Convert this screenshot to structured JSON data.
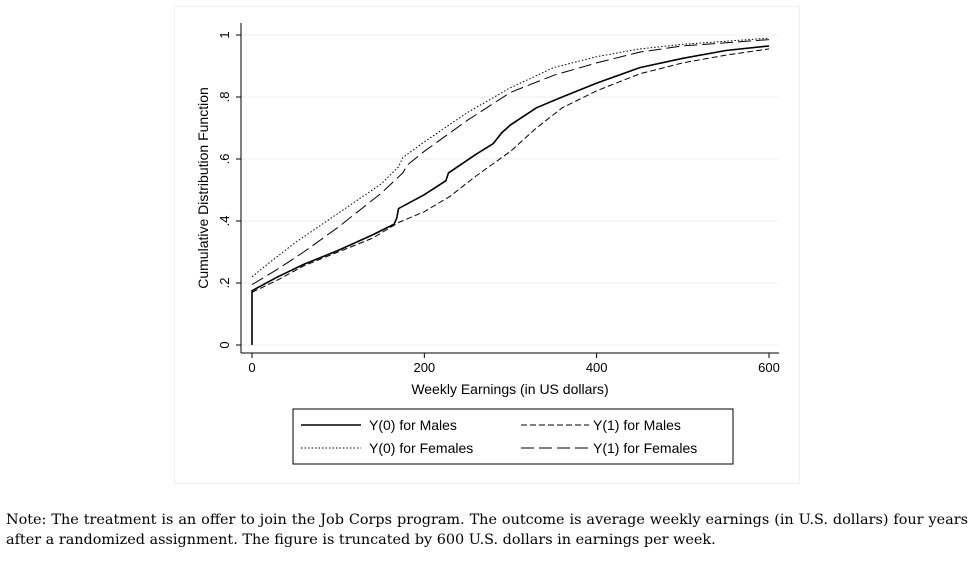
{
  "chart_data": {
    "type": "line",
    "title": "",
    "xlabel": "Weekly Earnings (in US dollars)",
    "ylabel": "Cumulative Distribution Function",
    "xlim": [
      0,
      600
    ],
    "ylim": [
      0,
      1
    ],
    "x_ticks": [
      0,
      200,
      400,
      600
    ],
    "x_tick_labels": [
      "0",
      "200",
      "400",
      "600"
    ],
    "y_ticks": [
      0,
      0.2,
      0.4,
      0.6,
      0.8,
      1
    ],
    "y_tick_labels": [
      "0",
      ".2",
      ".4",
      ".6",
      ".8",
      "1"
    ],
    "grid": true,
    "legend_position": "bottom",
    "series": [
      {
        "name": "Y(0) for Males",
        "style": "solid",
        "points": [
          [
            0,
            0
          ],
          [
            0,
            0.175
          ],
          [
            10,
            0.19
          ],
          [
            30,
            0.22
          ],
          [
            60,
            0.26
          ],
          [
            100,
            0.305
          ],
          [
            140,
            0.355
          ],
          [
            165,
            0.39
          ],
          [
            168,
            0.41
          ],
          [
            170,
            0.44
          ],
          [
            200,
            0.485
          ],
          [
            225,
            0.53
          ],
          [
            228,
            0.555
          ],
          [
            260,
            0.615
          ],
          [
            280,
            0.65
          ],
          [
            290,
            0.685
          ],
          [
            300,
            0.71
          ],
          [
            330,
            0.765
          ],
          [
            360,
            0.8
          ],
          [
            400,
            0.845
          ],
          [
            450,
            0.895
          ],
          [
            500,
            0.925
          ],
          [
            550,
            0.95
          ],
          [
            600,
            0.965
          ]
        ]
      },
      {
        "name": "Y(1) for Males",
        "style": "dashed",
        "points": [
          [
            0,
            0.17
          ],
          [
            30,
            0.21
          ],
          [
            60,
            0.255
          ],
          [
            100,
            0.3
          ],
          [
            140,
            0.345
          ],
          [
            170,
            0.395
          ],
          [
            200,
            0.43
          ],
          [
            230,
            0.48
          ],
          [
            260,
            0.545
          ],
          [
            300,
            0.625
          ],
          [
            330,
            0.7
          ],
          [
            360,
            0.765
          ],
          [
            400,
            0.82
          ],
          [
            450,
            0.875
          ],
          [
            500,
            0.91
          ],
          [
            550,
            0.935
          ],
          [
            600,
            0.955
          ]
        ]
      },
      {
        "name": "Y(0) for Females",
        "style": "dotted",
        "points": [
          [
            0,
            0.22
          ],
          [
            20,
            0.265
          ],
          [
            50,
            0.33
          ],
          [
            100,
            0.425
          ],
          [
            150,
            0.52
          ],
          [
            170,
            0.575
          ],
          [
            175,
            0.605
          ],
          [
            200,
            0.655
          ],
          [
            250,
            0.75
          ],
          [
            300,
            0.83
          ],
          [
            350,
            0.895
          ],
          [
            400,
            0.93
          ],
          [
            450,
            0.955
          ],
          [
            500,
            0.97
          ],
          [
            550,
            0.98
          ],
          [
            600,
            0.99
          ]
        ]
      },
      {
        "name": "Y(1) for Females",
        "style": "longdash",
        "points": [
          [
            0,
            0.195
          ],
          [
            30,
            0.245
          ],
          [
            60,
            0.3
          ],
          [
            100,
            0.38
          ],
          [
            150,
            0.49
          ],
          [
            175,
            0.555
          ],
          [
            180,
            0.58
          ],
          [
            200,
            0.625
          ],
          [
            250,
            0.725
          ],
          [
            300,
            0.815
          ],
          [
            350,
            0.87
          ],
          [
            400,
            0.91
          ],
          [
            450,
            0.945
          ],
          [
            500,
            0.965
          ],
          [
            550,
            0.975
          ],
          [
            600,
            0.985
          ]
        ]
      }
    ]
  },
  "legend": {
    "items": [
      {
        "label": "Y(0) for Males",
        "style": "solid"
      },
      {
        "label": "Y(1) for Males",
        "style": "dashed"
      },
      {
        "label": "Y(0) for Females",
        "style": "dotted"
      },
      {
        "label": "Y(1) for Females",
        "style": "longdash"
      }
    ]
  },
  "note": "Note: The treatment is an offer to join the Job Corps program. The outcome is average weekly earnings (in U.S. dollars) four years after a randomized assignment. The figure is truncated by 600 U.S. dollars in earnings per week."
}
